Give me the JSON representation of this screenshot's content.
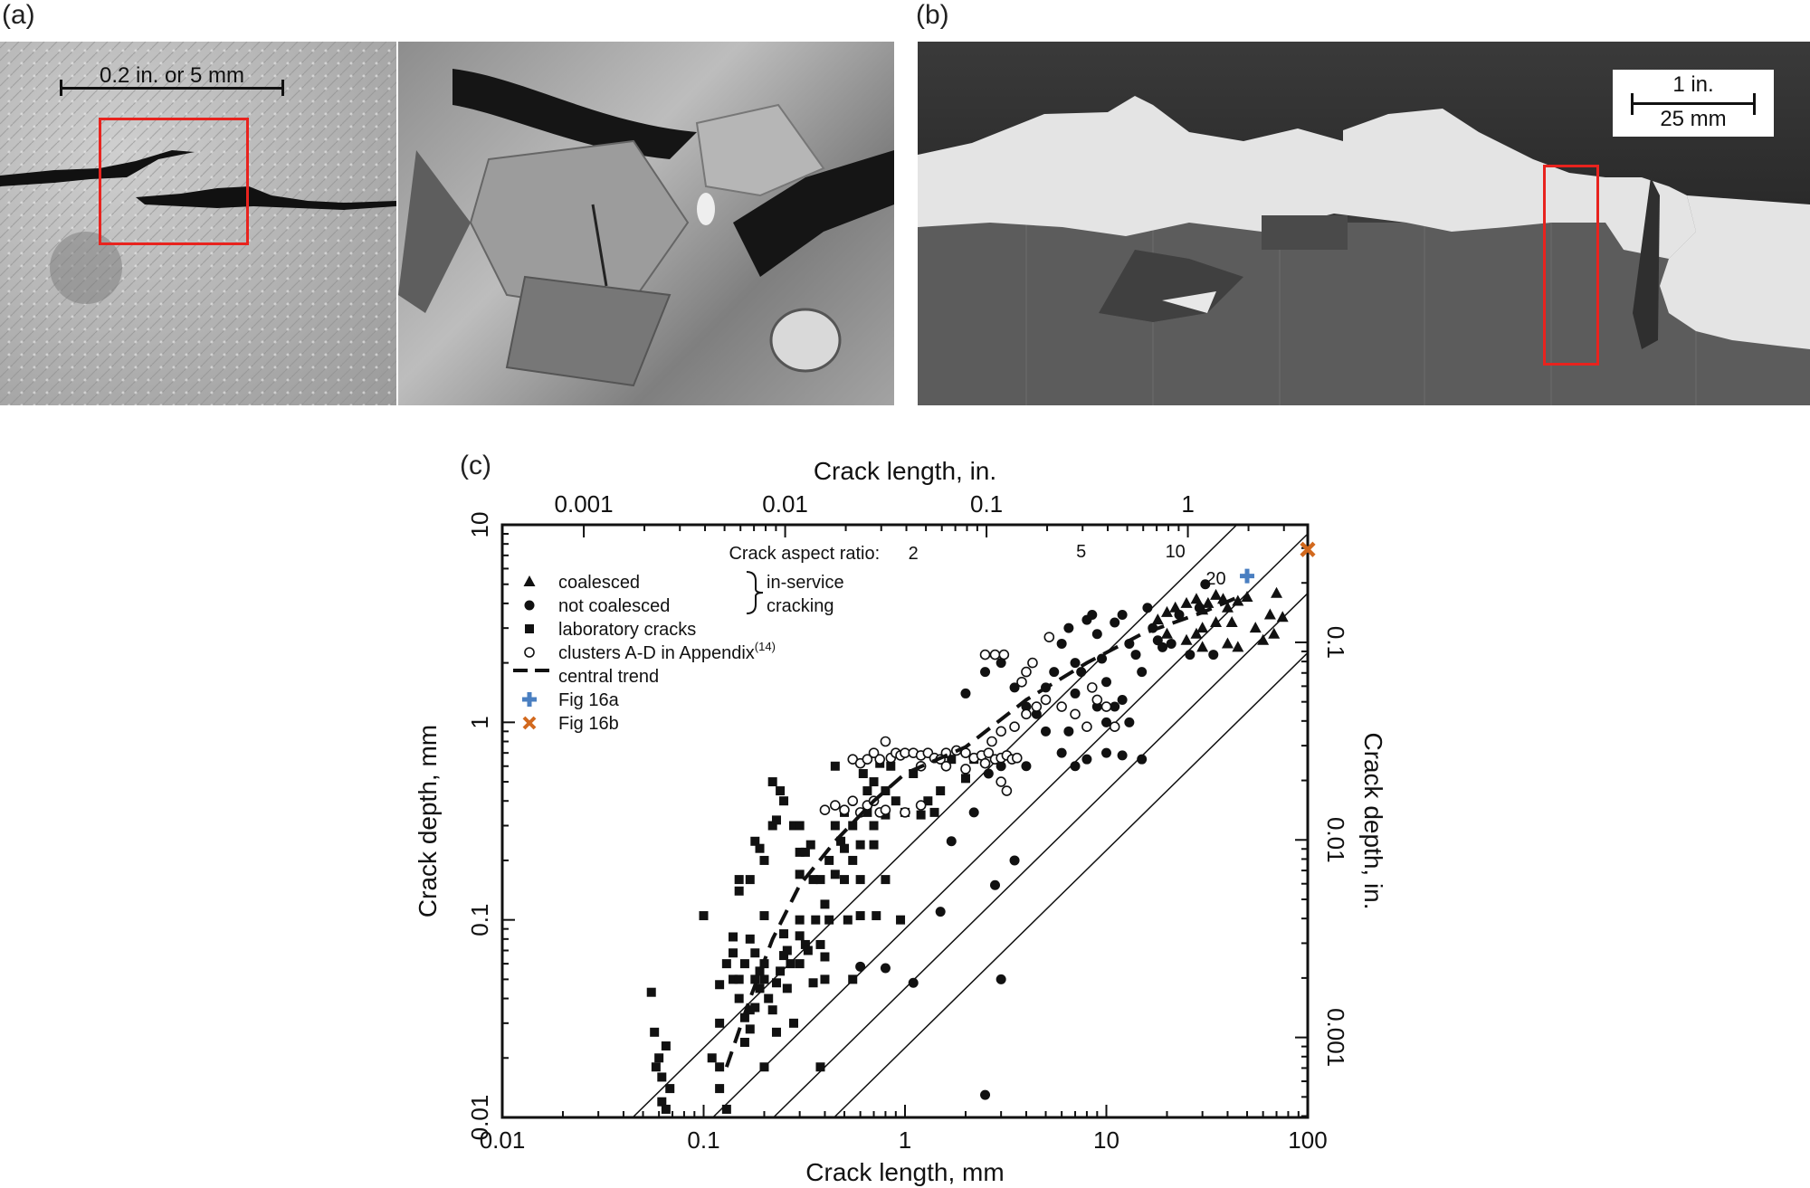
{
  "panels": {
    "a": "(a)",
    "b": "(b)",
    "c": "(c)"
  },
  "photo_a": {
    "scale_label": "0.2 in. or 5 mm"
  },
  "photo_b": {
    "scale_in": "1 in.",
    "scale_mm": "25 mm"
  },
  "chart_data": {
    "type": "scatter",
    "xscale": "log",
    "yscale": "log",
    "xlabel": "Crack length, mm",
    "ylabel": "Crack depth, mm",
    "x2label": "Crack length, in.",
    "y2label": "Crack depth, in.",
    "xlim": [
      0.01,
      100
    ],
    "ylim": [
      0.01,
      10
    ],
    "x_ticks": [
      "0.01",
      "0.1",
      "1",
      "10",
      "100"
    ],
    "y_ticks": [
      "0.01",
      "0.1",
      "1",
      "10"
    ],
    "x2_ticks": [
      "0.001",
      "0.01",
      "0.1",
      "1"
    ],
    "y2_ticks": [
      "0.001",
      "0.01",
      "0.1"
    ],
    "aspect_title": "Crack aspect ratio:",
    "aspect_ratios": [
      {
        "label": "2",
        "ratio": 2
      },
      {
        "label": "5",
        "ratio": 5
      },
      {
        "label": "10",
        "ratio": 10
      },
      {
        "label": "20",
        "ratio": 20
      }
    ],
    "legend": {
      "coalesced": "coalesced",
      "not_coalesced": "not coalesced",
      "in_service": "in-service",
      "cracking": "cracking",
      "laboratory": "laboratory cracks",
      "clusters": "clusters A-D in Appendix",
      "clusters_sup": "(14)",
      "central": "central trend",
      "fig16a": "Fig 16a",
      "fig16b": "Fig 16b"
    },
    "colors": {
      "fig16a": "#4a7fc1",
      "fig16b": "#d2691e"
    },
    "series": [
      {
        "name": "coalesced",
        "marker": "triangle",
        "points": [
          [
            18,
            3.3
          ],
          [
            20,
            3.6
          ],
          [
            22,
            3.8
          ],
          [
            25,
            4
          ],
          [
            28,
            4.2
          ],
          [
            30,
            3.7
          ],
          [
            32,
            4
          ],
          [
            35,
            4.4
          ],
          [
            38,
            4.2
          ],
          [
            40,
            3.8
          ],
          [
            45,
            4.1
          ],
          [
            50,
            4.3
          ],
          [
            20,
            2.8
          ],
          [
            25,
            2.6
          ],
          [
            30,
            3
          ],
          [
            35,
            3.2
          ],
          [
            40,
            2.5
          ],
          [
            45,
            2.4
          ],
          [
            55,
            3
          ],
          [
            60,
            2.6
          ],
          [
            65,
            3.5
          ],
          [
            70,
            4.5
          ],
          [
            75,
            3.4
          ],
          [
            28,
            2.8
          ],
          [
            42,
            3.2
          ],
          [
            30,
            2.4
          ],
          [
            68,
            2.8
          ]
        ]
      },
      {
        "name": "not coalesced",
        "marker": "circle",
        "points": [
          [
            2,
            1.4
          ],
          [
            2.5,
            1.8
          ],
          [
            3,
            2
          ],
          [
            3.5,
            1.5
          ],
          [
            4,
            1.2
          ],
          [
            4.5,
            1.1
          ],
          [
            5,
            1.5
          ],
          [
            5.5,
            1.8
          ],
          [
            6,
            2.5
          ],
          [
            6.5,
            3
          ],
          [
            7,
            2
          ],
          [
            7.5,
            1.8
          ],
          [
            8,
            3.3
          ],
          [
            8.5,
            3.5
          ],
          [
            9,
            2.8
          ],
          [
            9.5,
            2.1
          ],
          [
            10,
            1.6
          ],
          [
            11,
            3.2
          ],
          [
            12,
            3.5
          ],
          [
            13,
            2.5
          ],
          [
            14,
            2.2
          ],
          [
            15,
            1.8
          ],
          [
            16,
            3.8
          ],
          [
            17,
            3
          ],
          [
            18,
            2.6
          ],
          [
            19,
            2.4
          ],
          [
            21,
            2.5
          ],
          [
            23,
            3.5
          ],
          [
            26,
            2.2
          ],
          [
            29,
            3.8
          ],
          [
            31,
            5
          ],
          [
            34,
            2.2
          ],
          [
            5,
            0.9
          ],
          [
            6,
            0.7
          ],
          [
            7,
            0.6
          ],
          [
            8,
            0.65
          ],
          [
            10,
            0.7
          ],
          [
            12,
            0.68
          ],
          [
            15,
            0.65
          ],
          [
            9,
            1.2
          ],
          [
            10,
            1
          ],
          [
            11,
            1.2
          ],
          [
            12,
            1.3
          ],
          [
            4,
            0.6
          ],
          [
            3,
            0.6
          ],
          [
            6.5,
            0.9
          ],
          [
            2.2,
            0.35
          ],
          [
            1.7,
            0.25
          ],
          [
            3.5,
            0.2
          ],
          [
            3.2,
            0.45
          ],
          [
            2.6,
            0.55
          ],
          [
            2.8,
            0.15
          ],
          [
            3,
            0.05
          ],
          [
            1.5,
            0.11
          ],
          [
            1.1,
            0.048
          ],
          [
            0.8,
            0.057
          ],
          [
            0.6,
            0.058
          ],
          [
            2.5,
            0.013
          ],
          [
            13,
            1.0
          ],
          [
            7,
            1.4
          ]
        ]
      },
      {
        "name": "laboratory cracks",
        "marker": "square",
        "points": [
          [
            0.055,
            0.043
          ],
          [
            0.057,
            0.027
          ],
          [
            0.058,
            0.018
          ],
          [
            0.06,
            0.02
          ],
          [
            0.062,
            0.016
          ],
          [
            0.065,
            0.023
          ],
          [
            0.062,
            0.012
          ],
          [
            0.065,
            0.011
          ],
          [
            0.068,
            0.014
          ],
          [
            0.1,
            0.105
          ],
          [
            0.11,
            0.02
          ],
          [
            0.12,
            0.03
          ],
          [
            0.12,
            0.018
          ],
          [
            0.12,
            0.014
          ],
          [
            0.12,
            0.047
          ],
          [
            0.13,
            0.06
          ],
          [
            0.14,
            0.05
          ],
          [
            0.15,
            0.05
          ],
          [
            0.15,
            0.04
          ],
          [
            0.16,
            0.06
          ],
          [
            0.16,
            0.032
          ],
          [
            0.17,
            0.028
          ],
          [
            0.17,
            0.035
          ],
          [
            0.18,
            0.05
          ],
          [
            0.18,
            0.036
          ],
          [
            0.19,
            0.055
          ],
          [
            0.19,
            0.045
          ],
          [
            0.2,
            0.06
          ],
          [
            0.2,
            0.05
          ],
          [
            0.2,
            0.105
          ],
          [
            0.21,
            0.04
          ],
          [
            0.22,
            0.035
          ],
          [
            0.23,
            0.048
          ],
          [
            0.24,
            0.055
          ],
          [
            0.25,
            0.066
          ],
          [
            0.26,
            0.07
          ],
          [
            0.27,
            0.06
          ],
          [
            0.25,
            0.085
          ],
          [
            0.3,
            0.1
          ],
          [
            0.3,
            0.083
          ],
          [
            0.32,
            0.075
          ],
          [
            0.33,
            0.07
          ],
          [
            0.18,
            0.068
          ],
          [
            0.17,
            0.08
          ],
          [
            0.14,
            0.068
          ],
          [
            0.14,
            0.082
          ],
          [
            0.15,
            0.14
          ],
          [
            0.15,
            0.16
          ],
          [
            0.17,
            0.16
          ],
          [
            0.18,
            0.25
          ],
          [
            0.19,
            0.23
          ],
          [
            0.2,
            0.2
          ],
          [
            0.22,
            0.3
          ],
          [
            0.23,
            0.32
          ],
          [
            0.24,
            0.45
          ],
          [
            0.25,
            0.4
          ],
          [
            0.22,
            0.5
          ],
          [
            0.28,
            0.3
          ],
          [
            0.3,
            0.3
          ],
          [
            0.3,
            0.22
          ],
          [
            0.3,
            0.17
          ],
          [
            0.32,
            0.22
          ],
          [
            0.34,
            0.24
          ],
          [
            0.35,
            0.16
          ],
          [
            0.36,
            0.1
          ],
          [
            0.38,
            0.16
          ],
          [
            0.4,
            0.12
          ],
          [
            0.4,
            0.065
          ],
          [
            0.42,
            0.1
          ],
          [
            0.42,
            0.2
          ],
          [
            0.45,
            0.17
          ],
          [
            0.45,
            0.3
          ],
          [
            0.48,
            0.25
          ],
          [
            0.5,
            0.35
          ],
          [
            0.5,
            0.16
          ],
          [
            0.52,
            0.1
          ],
          [
            0.55,
            0.2
          ],
          [
            0.55,
            0.3
          ],
          [
            0.6,
            0.24
          ],
          [
            0.6,
            0.16
          ],
          [
            0.6,
            0.105
          ],
          [
            0.62,
            0.55
          ],
          [
            0.65,
            0.45
          ],
          [
            0.65,
            0.35
          ],
          [
            0.7,
            0.3
          ],
          [
            0.7,
            0.24
          ],
          [
            0.7,
            0.5
          ],
          [
            0.75,
            0.62
          ],
          [
            0.8,
            0.45
          ],
          [
            0.8,
            0.34
          ],
          [
            0.85,
            0.6
          ],
          [
            0.9,
            0.4
          ],
          [
            1,
            0.35
          ],
          [
            1.1,
            0.55
          ],
          [
            1.2,
            0.34
          ],
          [
            1.3,
            0.4
          ],
          [
            1.4,
            0.35
          ],
          [
            1.5,
            0.45
          ],
          [
            1.7,
            0.65
          ],
          [
            2,
            0.52
          ],
          [
            2.2,
            0.65
          ],
          [
            0.45,
            0.6
          ],
          [
            0.5,
            0.23
          ],
          [
            0.72,
            0.105
          ],
          [
            0.8,
            0.16
          ],
          [
            0.95,
            0.1
          ],
          [
            0.55,
            0.05
          ],
          [
            0.4,
            0.05
          ],
          [
            0.35,
            0.048
          ],
          [
            0.38,
            0.075
          ],
          [
            0.38,
            0.018
          ],
          [
            0.28,
            0.03
          ],
          [
            0.3,
            0.06
          ],
          [
            0.26,
            0.045
          ],
          [
            0.23,
            0.027
          ],
          [
            0.2,
            0.018
          ],
          [
            0.16,
            0.024
          ],
          [
            0.13,
            0.011
          ]
        ]
      },
      {
        "name": "clusters A-D in Appendix",
        "marker": "open-circle",
        "points": [
          [
            0.55,
            0.65
          ],
          [
            0.6,
            0.62
          ],
          [
            0.65,
            0.65
          ],
          [
            0.7,
            0.7
          ],
          [
            0.75,
            0.65
          ],
          [
            0.8,
            0.8
          ],
          [
            0.85,
            0.66
          ],
          [
            0.9,
            0.7
          ],
          [
            0.95,
            0.68
          ],
          [
            1,
            0.7
          ],
          [
            1.1,
            0.7
          ],
          [
            1.2,
            0.68
          ],
          [
            1.3,
            0.7
          ],
          [
            1.4,
            0.66
          ],
          [
            1.5,
            0.65
          ],
          [
            1.6,
            0.7
          ],
          [
            1.8,
            0.72
          ],
          [
            2,
            0.7
          ],
          [
            2.2,
            0.66
          ],
          [
            2.4,
            0.68
          ],
          [
            2.6,
            0.7
          ],
          [
            2.8,
            0.65
          ],
          [
            3,
            0.66
          ],
          [
            3.2,
            0.68
          ],
          [
            3.4,
            0.65
          ],
          [
            3.6,
            0.66
          ],
          [
            1.2,
            0.6
          ],
          [
            1.6,
            0.6
          ],
          [
            2,
            0.58
          ],
          [
            2.5,
            0.62
          ],
          [
            2.7,
            0.8
          ],
          [
            3,
            0.9
          ],
          [
            3.5,
            0.95
          ],
          [
            4,
            1.1
          ],
          [
            4.5,
            1.2
          ],
          [
            5,
            1.3
          ],
          [
            6,
            1.2
          ],
          [
            7,
            1.1
          ],
          [
            8,
            0.95
          ],
          [
            8.5,
            1.5
          ],
          [
            9,
            1.3
          ],
          [
            10,
            1.2
          ],
          [
            11,
            0.95
          ],
          [
            2.5,
            2.2
          ],
          [
            2.8,
            2.2
          ],
          [
            3.1,
            2.2
          ],
          [
            4.3,
            2
          ],
          [
            5.2,
            2.7
          ],
          [
            3.8,
            1.6
          ],
          [
            4,
            1.8
          ],
          [
            3,
            0.5
          ],
          [
            3.2,
            0.45
          ],
          [
            0.4,
            0.36
          ],
          [
            0.45,
            0.38
          ],
          [
            0.5,
            0.36
          ],
          [
            0.55,
            0.4
          ],
          [
            0.6,
            0.35
          ],
          [
            0.65,
            0.38
          ],
          [
            0.7,
            0.4
          ],
          [
            0.75,
            0.35
          ],
          [
            0.8,
            0.36
          ],
          [
            1,
            0.35
          ],
          [
            1.2,
            0.38
          ]
        ]
      },
      {
        "name": "central trend",
        "marker": "dashed-line",
        "points": [
          [
            0.13,
            0.018
          ],
          [
            0.17,
            0.04
          ],
          [
            0.22,
            0.08
          ],
          [
            0.3,
            0.15
          ],
          [
            0.45,
            0.25
          ],
          [
            0.7,
            0.4
          ],
          [
            1,
            0.55
          ],
          [
            2,
            0.75
          ],
          [
            4,
            1.3
          ],
          [
            8,
            2
          ],
          [
            15,
            2.8
          ],
          [
            30,
            3.6
          ],
          [
            45,
            4.3
          ]
        ]
      },
      {
        "name": "Fig 16a",
        "marker": "plus",
        "points": [
          [
            50,
            5.5
          ]
        ]
      },
      {
        "name": "Fig 16b",
        "marker": "x",
        "points": [
          [
            100,
            7.5
          ]
        ]
      }
    ]
  }
}
